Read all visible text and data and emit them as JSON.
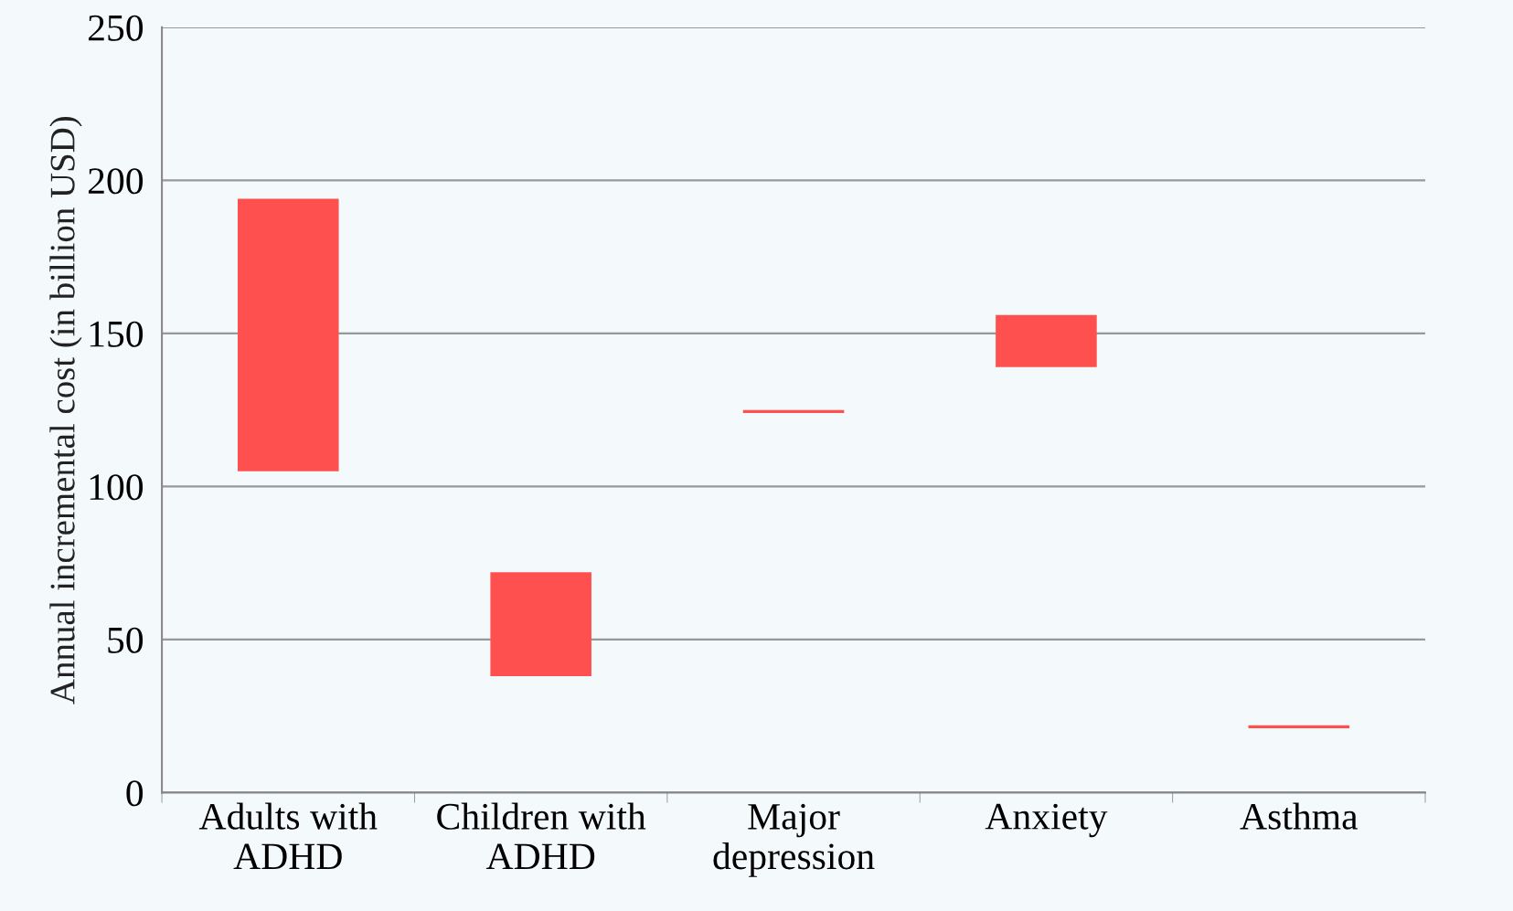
{
  "chart_data": {
    "type": "bar",
    "ylabel": "Annual incremental cost (in billion USD)",
    "categories": [
      "Adults with\nADHD",
      "Children with\nADHD",
      "Major\ndepression",
      "Anxiety",
      "Asthma"
    ],
    "base": [
      105,
      38,
      124,
      139,
      21
    ],
    "values": [
      89,
      34,
      1,
      17,
      1
    ],
    "color": "#ff5050",
    "ylim": [
      0,
      250
    ],
    "yticks": [
      0,
      50,
      100,
      150,
      200,
      250
    ],
    "grid": "y"
  }
}
